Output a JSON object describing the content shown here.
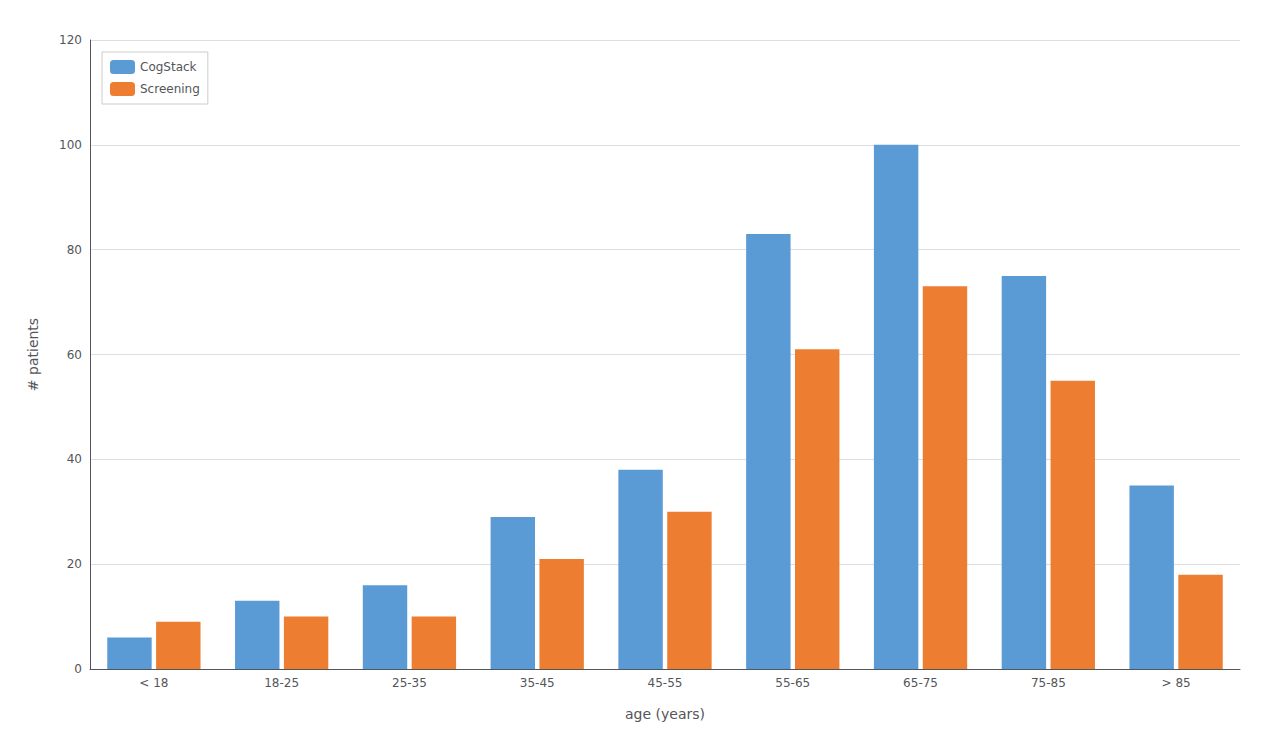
{
  "chart_data": {
    "type": "bar",
    "xlabel": "age (years)",
    "ylabel": "# patients",
    "categories": [
      "< 18",
      "18-25",
      "25-35",
      "35-45",
      "45-55",
      "55-65",
      "65-75",
      "75-85",
      "> 85"
    ],
    "series": [
      {
        "name": "CogStack",
        "color": "#5B9BD5",
        "values": [
          6,
          13,
          16,
          29,
          38,
          83,
          100,
          75,
          35
        ]
      },
      {
        "name": "Screening",
        "color": "#ED7D31",
        "values": [
          9,
          10,
          10,
          21,
          30,
          61,
          73,
          55,
          18
        ]
      }
    ],
    "ylim": [
      0,
      120
    ],
    "yticks": [
      0,
      20,
      40,
      60,
      80,
      100,
      120
    ],
    "grid": true,
    "legend": "upper left"
  }
}
